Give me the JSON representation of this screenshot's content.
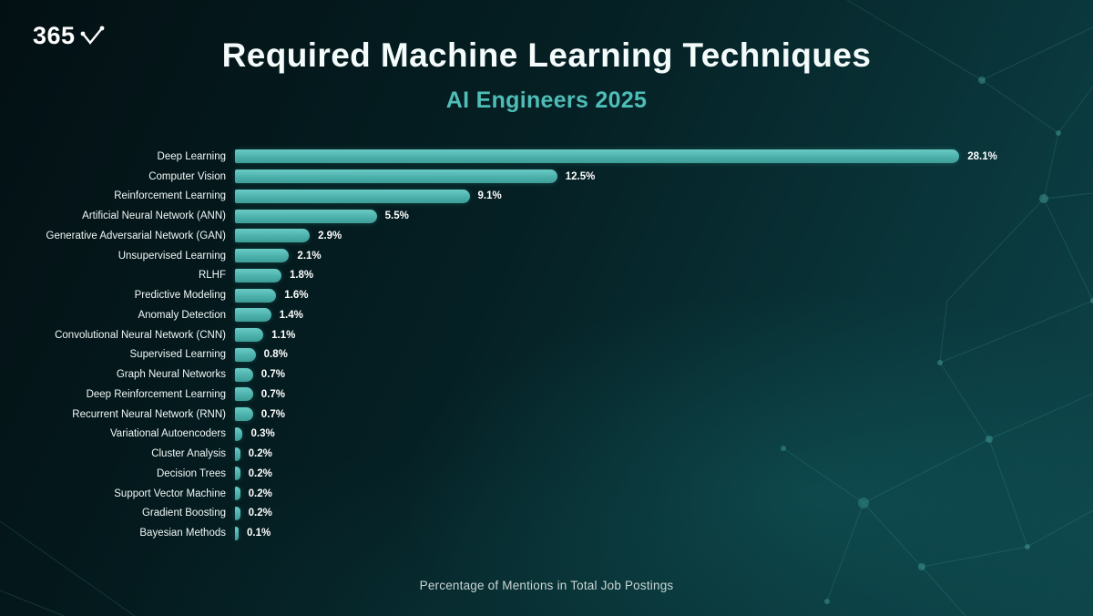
{
  "logo": {
    "text": "365"
  },
  "header": {
    "title": "Required Machine Learning Techniques",
    "subtitle": "AI Engineers 2025"
  },
  "footer": {
    "caption": "Percentage of Mentions in Total Job Postings"
  },
  "colors": {
    "background_dark": "#031013",
    "background_teal": "#0d4449",
    "bar_top": "#6acbc5",
    "bar_bottom": "#3d9d97",
    "subtitle": "#4fbdb7",
    "value_label": "#ffffff"
  },
  "chart_data": {
    "type": "bar",
    "orientation": "horizontal",
    "title": "Required Machine Learning Techniques",
    "subtitle": "AI Engineers 2025",
    "xlabel": "Percentage of Mentions in Total Job Postings",
    "ylabel": "",
    "xlim": [
      0,
      30
    ],
    "grid": false,
    "legend": "none",
    "value_suffix": "%",
    "categories": [
      "Deep Learning",
      "Computer Vision",
      "Reinforcement Learning",
      "Artificial Neural Network (ANN)",
      "Generative Adversarial Network (GAN)",
      "Unsupervised Learning",
      "RLHF",
      "Predictive Modeling",
      "Anomaly Detection",
      "Convolutional Neural Network (CNN)",
      "Supervised Learning",
      "Graph Neural Networks",
      "Deep Reinforcement Learning",
      "Recurrent Neural Network (RNN)",
      "Variational Autoencoders",
      "Cluster Analysis",
      "Decision Trees",
      "Support Vector Machine",
      "Gradient Boosting",
      "Bayesian Methods"
    ],
    "values": [
      28.1,
      12.5,
      9.1,
      5.5,
      2.9,
      2.1,
      1.8,
      1.6,
      1.4,
      1.1,
      0.8,
      0.7,
      0.7,
      0.7,
      0.3,
      0.2,
      0.2,
      0.2,
      0.2,
      0.1
    ]
  }
}
